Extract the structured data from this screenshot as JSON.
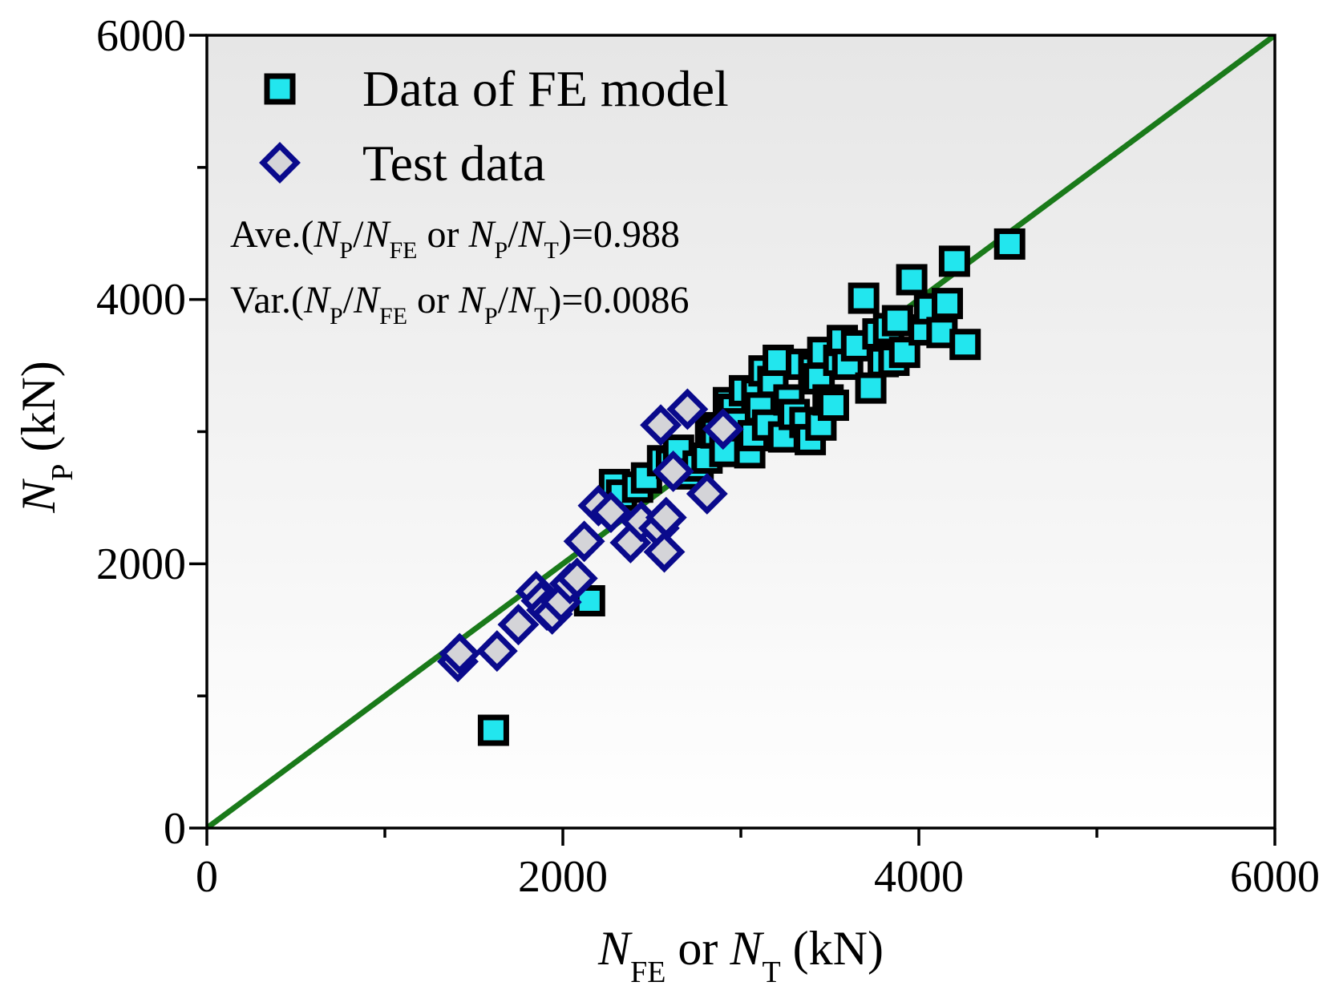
{
  "chart_data": {
    "type": "scatter",
    "xlim": [
      0,
      6000
    ],
    "ylim": [
      0,
      6000
    ],
    "x_ticks": [
      "0",
      "2000",
      "4000",
      "6000"
    ],
    "y_ticks": [
      "0",
      "2000",
      "4000",
      "6000"
    ],
    "x_tick_values": [
      0,
      2000,
      4000,
      6000
    ],
    "y_tick_values": [
      0,
      2000,
      4000,
      6000
    ],
    "x_minor_values": [
      1000,
      3000,
      5000
    ],
    "y_minor_values": [
      1000,
      3000,
      5000
    ],
    "xlabel": {
      "n1": "N",
      "s1": "FE",
      "mid": " or ",
      "n2": "N",
      "s2": "T",
      "unit": " (kN)"
    },
    "ylabel": {
      "n": "N",
      "s": "P",
      "unit": " (kN)"
    },
    "legend": {
      "placement": "top-left",
      "fe_label": "Data of FE model",
      "test_label": "Test data"
    },
    "annotations": {
      "ave": {
        "prefix": "Ave.(",
        "a": "N",
        "as": "P",
        "slash1": "/",
        "b": "N",
        "bs": "FE",
        "or": " or ",
        "c": "N",
        "cs": "P",
        "slash2": "/",
        "d": "N",
        "ds": "T",
        "suffix": ")=0.988"
      },
      "var": {
        "prefix": "Var.(",
        "a": "N",
        "as": "P",
        "slash1": "/",
        "b": "N",
        "bs": "FE",
        "or": " or ",
        "c": "N",
        "cs": "P",
        "slash2": "/",
        "d": "N",
        "ds": "T",
        "suffix": ")=0.0086"
      }
    },
    "reference_line": {
      "x": [
        0,
        6000
      ],
      "y": [
        0,
        6000
      ],
      "color": "#1a7a1a"
    },
    "colors": {
      "fe_fill": "#22e6ee",
      "fe_edge": "#000000",
      "test_fill": "#d4d4d8",
      "test_edge": "#0a0a8c",
      "bg_top": "#e6e6e6",
      "bg_bottom": "#ffffff"
    },
    "series": [
      {
        "name": "Data of FE model",
        "marker": "square",
        "points": [
          [
            1610,
            740
          ],
          [
            2150,
            1720
          ],
          [
            2290,
            2600
          ],
          [
            2330,
            2520
          ],
          [
            2420,
            2580
          ],
          [
            2470,
            2650
          ],
          [
            2560,
            2780
          ],
          [
            2610,
            2760
          ],
          [
            2650,
            2860
          ],
          [
            2700,
            2680
          ],
          [
            2760,
            2740
          ],
          [
            2810,
            2800
          ],
          [
            2830,
            3030
          ],
          [
            2860,
            2990
          ],
          [
            2910,
            2850
          ],
          [
            2930,
            3220
          ],
          [
            2960,
            3170
          ],
          [
            2990,
            3060
          ],
          [
            3020,
            3310
          ],
          [
            3050,
            2840
          ],
          [
            3070,
            2970
          ],
          [
            3090,
            3290
          ],
          [
            3110,
            3180
          ],
          [
            3130,
            3460
          ],
          [
            3150,
            3050
          ],
          [
            3180,
            3380
          ],
          [
            3210,
            3540
          ],
          [
            3240,
            2960
          ],
          [
            3270,
            3240
          ],
          [
            3300,
            3130
          ],
          [
            3340,
            3510
          ],
          [
            3360,
            3070
          ],
          [
            3390,
            2940
          ],
          [
            3410,
            3470
          ],
          [
            3440,
            3400
          ],
          [
            3450,
            3050
          ],
          [
            3460,
            3600
          ],
          [
            3490,
            3240
          ],
          [
            3520,
            3200
          ],
          [
            3550,
            3540
          ],
          [
            3570,
            3690
          ],
          [
            3600,
            3510
          ],
          [
            3650,
            3650
          ],
          [
            3690,
            4010
          ],
          [
            3730,
            3330
          ],
          [
            3770,
            3740
          ],
          [
            3800,
            3530
          ],
          [
            3830,
            3780
          ],
          [
            3860,
            3540
          ],
          [
            3880,
            3840
          ],
          [
            3920,
            3600
          ],
          [
            3960,
            4150
          ],
          [
            4030,
            3770
          ],
          [
            4060,
            3930
          ],
          [
            4130,
            3750
          ],
          [
            4160,
            3970
          ],
          [
            4200,
            4290
          ],
          [
            4260,
            3660
          ],
          [
            4510,
            4420
          ]
        ]
      },
      {
        "name": "Test data",
        "marker": "diamond",
        "points": [
          [
            1410,
            1260
          ],
          [
            1420,
            1320
          ],
          [
            1630,
            1340
          ],
          [
            1750,
            1540
          ],
          [
            1850,
            1790
          ],
          [
            1880,
            1720
          ],
          [
            1910,
            1650
          ],
          [
            1940,
            1620
          ],
          [
            1990,
            1710
          ],
          [
            2040,
            1850
          ],
          [
            2080,
            1890
          ],
          [
            2120,
            2170
          ],
          [
            2200,
            2440
          ],
          [
            2270,
            2390
          ],
          [
            2380,
            2160
          ],
          [
            2440,
            2320
          ],
          [
            2540,
            2270
          ],
          [
            2570,
            2090
          ],
          [
            2580,
            2350
          ],
          [
            2550,
            3050
          ],
          [
            2620,
            2700
          ],
          [
            2700,
            3170
          ],
          [
            2810,
            2530
          ],
          [
            2900,
            3020
          ]
        ]
      }
    ]
  }
}
